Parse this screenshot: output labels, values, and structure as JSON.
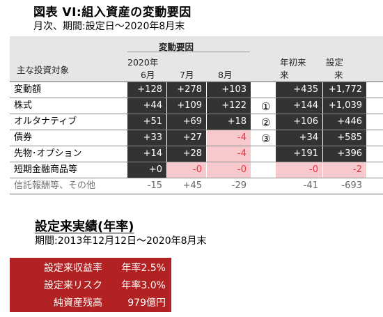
{
  "title": "図表 VI:組入資産の変動要因",
  "subtitle": "月次、期間:設定日～2020年8月末",
  "table": {
    "group_header": "変動要因",
    "col_label_header": "主な投資対象",
    "col_year": "2020年",
    "months": [
      "6月",
      "7月",
      "8月"
    ],
    "col_ytd_line1": "年初来",
    "col_ytd_line2": "来",
    "col_since_line1": "設定",
    "col_since_line2": "来",
    "rows": [
      {
        "label": "変動額",
        "jun": "+128",
        "jul": "+278",
        "aug": "+103",
        "ytd": "+435",
        "since": "+1,772",
        "marker": ""
      },
      {
        "label": "株式",
        "jun": "+44",
        "jul": "+109",
        "aug": "+122",
        "ytd": "+144",
        "since": "+1,039",
        "marker": "①"
      },
      {
        "label": "オルタナティブ",
        "jun": "+51",
        "jul": "+69",
        "aug": "+18",
        "ytd": "+106",
        "since": "+446",
        "marker": "②"
      },
      {
        "label": "債券",
        "jun": "+33",
        "jul": "+27",
        "aug": "-4",
        "ytd": "+34",
        "since": "+585",
        "marker": "③"
      },
      {
        "label": "先物･オプション",
        "jun": "+14",
        "jul": "+28",
        "aug": "-4",
        "ytd": "+191",
        "since": "+396",
        "marker": ""
      },
      {
        "label": "短期金融商品等",
        "jun": "+0",
        "jul": "-0",
        "aug": "-0",
        "ytd": "-0",
        "since": "-2",
        "marker": ""
      },
      {
        "label": "信託報酬等、その他",
        "jun": "-15",
        "jul": "+45",
        "aug": "-29",
        "ytd": "-41",
        "since": "-693",
        "marker": ""
      }
    ]
  },
  "performance": {
    "heading": "設定来実績(年率)",
    "period": "期間:2013年12月12日～2020年8月末",
    "items": [
      {
        "label": "設定来収益率",
        "value": "年率2.5%"
      },
      {
        "label": "設定来リスク",
        "value": "年率3.0%"
      },
      {
        "label": "純資産残高",
        "value": "979億円"
      }
    ]
  },
  "colors": {
    "dark_cell": "#333333",
    "pink_cell": "#f7c9cc",
    "negative_text": "#e8343c",
    "red_box": "#b22222"
  }
}
